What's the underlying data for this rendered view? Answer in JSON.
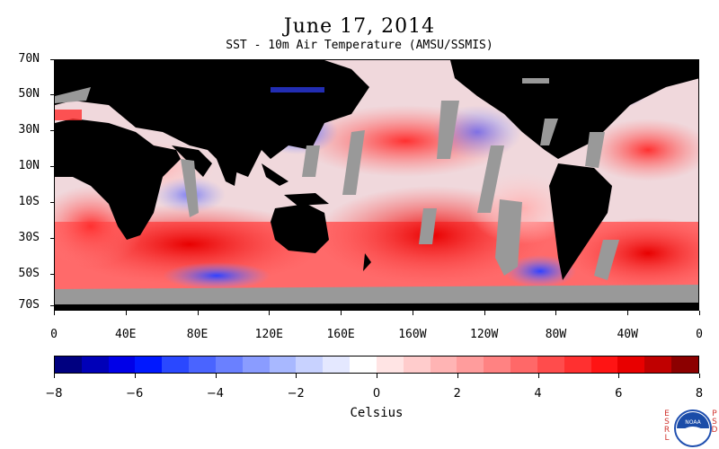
{
  "title": "June 17, 2014",
  "subtitle": "SST - 10m Air Temperature (AMSU/SSMIS)",
  "lat_labels": [
    "70N",
    "50N",
    "30N",
    "10N",
    "10S",
    "30S",
    "50S",
    "70S"
  ],
  "lon_labels": [
    "0",
    "40E",
    "80E",
    "120E",
    "160E",
    "160W",
    "120W",
    "80W",
    "40W",
    "0"
  ],
  "colorbar": {
    "tick_labels": [
      "−8",
      "−6",
      "−4",
      "−2",
      "0",
      "2",
      "4",
      "6",
      "8"
    ],
    "units": "Celsius",
    "colors": [
      "#000080",
      "#0000b8",
      "#0000e8",
      "#0018ff",
      "#2a48ff",
      "#4a64ff",
      "#6a80ff",
      "#8a9cff",
      "#a8b8ff",
      "#c8d2ff",
      "#e4e8ff",
      "#ffffff",
      "#ffe4e4",
      "#ffcccc",
      "#ffb4b4",
      "#ff9c9c",
      "#ff8282",
      "#ff6868",
      "#ff4c4c",
      "#ff3030",
      "#ff1414",
      "#e80000",
      "#c00000",
      "#8c0000"
    ]
  },
  "logo": {
    "left_text": "ESRL",
    "right_text": "PSD",
    "badge_text": "NOAA"
  },
  "colors": {
    "land": "#000000",
    "missing": "#999999",
    "warm": "#ff2020",
    "cool": "#3040ff"
  }
}
